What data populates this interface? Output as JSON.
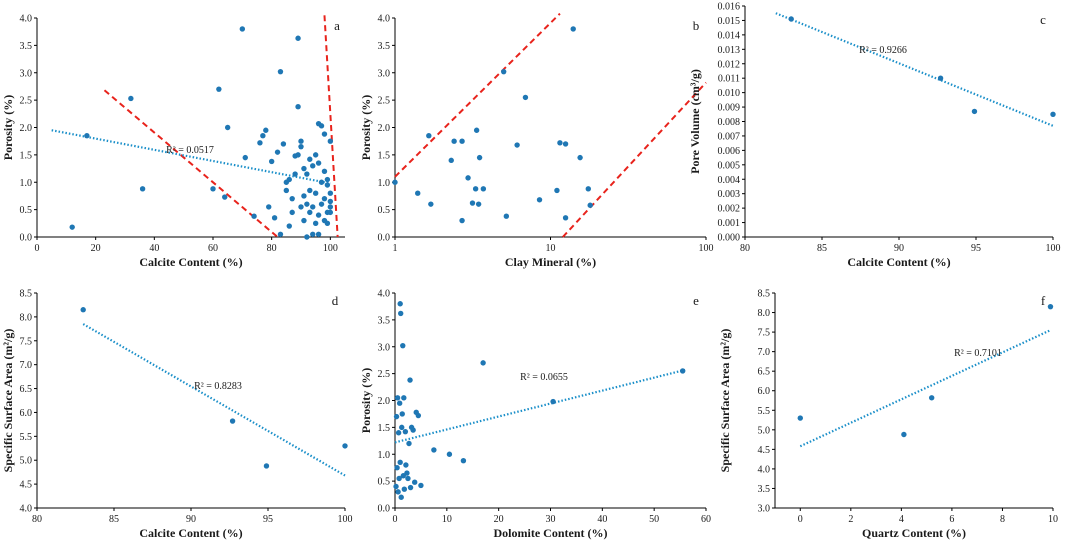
{
  "chart_data": [
    {
      "id": "a",
      "type": "scatter",
      "letter": "a",
      "xlabel": "Calcite Content (%)",
      "ylabel": "Porosity (%)",
      "xlim": [
        0,
        105
      ],
      "ylim": [
        0,
        4.0
      ],
      "xticks": [
        0,
        20,
        40,
        60,
        80,
        100
      ],
      "yticks": [
        0,
        0.5,
        1.0,
        1.5,
        2.0,
        2.5,
        3.0,
        3.5,
        4.0
      ],
      "xtick_labels": [
        "0",
        "20",
        "40",
        "60",
        "80",
        "100"
      ],
      "ytick_labels": [
        "0.0",
        "0.5",
        "1.0",
        "1.5",
        "2.0",
        "2.5",
        "3.0",
        "3.5",
        "4.0"
      ],
      "r2": "R² = 0.0517",
      "trend": [
        [
          5,
          1.95
        ],
        [
          100,
          0.98
        ]
      ],
      "bounds": [
        [
          [
            23,
            2.68
          ],
          [
            82,
            0.0
          ]
        ],
        [
          [
            98,
            4.05
          ],
          [
            102.5,
            0.0
          ]
        ]
      ],
      "points": [
        [
          12,
          0.18
        ],
        [
          17,
          1.85
        ],
        [
          32,
          2.53
        ],
        [
          36,
          0.88
        ],
        [
          60,
          0.88
        ],
        [
          62,
          2.7
        ],
        [
          64,
          0.73
        ],
        [
          65,
          2.0
        ],
        [
          70,
          3.8
        ],
        [
          71,
          1.45
        ],
        [
          74,
          0.38
        ],
        [
          76,
          1.72
        ],
        [
          77,
          1.85
        ],
        [
          78,
          1.95
        ],
        [
          79,
          0.55
        ],
        [
          80,
          1.38
        ],
        [
          81,
          0.35
        ],
        [
          82,
          1.55
        ],
        [
          83,
          0.05
        ],
        [
          83,
          3.02
        ],
        [
          84,
          1.7
        ],
        [
          85,
          0.85
        ],
        [
          85,
          1.0
        ],
        [
          86,
          1.05
        ],
        [
          86,
          0.2
        ],
        [
          87,
          0.45
        ],
        [
          87,
          0.7
        ],
        [
          88,
          1.15
        ],
        [
          88,
          1.48
        ],
        [
          89,
          3.63
        ],
        [
          89,
          1.5
        ],
        [
          89,
          2.38
        ],
        [
          90,
          0.55
        ],
        [
          90,
          1.65
        ],
        [
          90,
          1.75
        ],
        [
          91,
          0.3
        ],
        [
          91,
          0.75
        ],
        [
          91,
          1.25
        ],
        [
          92,
          0.0
        ],
        [
          92,
          0.6
        ],
        [
          92,
          1.15
        ],
        [
          93,
          0.45
        ],
        [
          93,
          0.85
        ],
        [
          93,
          1.42
        ],
        [
          94,
          0.05
        ],
        [
          94,
          0.55
        ],
        [
          94,
          1.3
        ],
        [
          95,
          0.25
        ],
        [
          95,
          0.8
        ],
        [
          95,
          1.5
        ],
        [
          96,
          0.05
        ],
        [
          96,
          0.4
        ],
        [
          96,
          1.35
        ],
        [
          96,
          2.07
        ],
        [
          97,
          0.6
        ],
        [
          97,
          1.0
        ],
        [
          97,
          2.03
        ],
        [
          98,
          0.3
        ],
        [
          98,
          0.7
        ],
        [
          98,
          1.2
        ],
        [
          98,
          1.88
        ],
        [
          99,
          0.45
        ],
        [
          99,
          0.95
        ],
        [
          99,
          1.05
        ],
        [
          99,
          0.25
        ],
        [
          100,
          0.55
        ],
        [
          100,
          0.65
        ],
        [
          100,
          1.75
        ],
        [
          100,
          0.45
        ],
        [
          100,
          0.8
        ]
      ]
    },
    {
      "id": "b",
      "type": "scatter",
      "letter": "b",
      "xscale": "log",
      "xlabel": "Clay Mineral (%)",
      "ylabel": "Porosity (%)",
      "xlim": [
        1,
        100
      ],
      "ylim": [
        0,
        4.0
      ],
      "xticks": [
        1,
        10,
        100
      ],
      "yticks": [
        0,
        0.5,
        1.0,
        1.5,
        2.0,
        2.5,
        3.0,
        3.5,
        4.0
      ],
      "xtick_labels": [
        "1",
        "10",
        "100"
      ],
      "ytick_labels": [
        "0.0",
        "0.5",
        "1.0",
        "1.5",
        "2.0",
        "2.5",
        "3.0",
        "3.5",
        "4.0"
      ],
      "bounds": [
        [
          [
            1,
            1.1
          ],
          [
            11.5,
            4.08
          ]
        ],
        [
          [
            12,
            0.0
          ],
          [
            100,
            2.82
          ]
        ]
      ],
      "points": [
        [
          1.0,
          1.0
        ],
        [
          1.4,
          0.8
        ],
        [
          1.65,
          1.85
        ],
        [
          1.7,
          0.6
        ],
        [
          2.3,
          1.4
        ],
        [
          2.4,
          1.75
        ],
        [
          2.7,
          0.3
        ],
        [
          2.7,
          1.75
        ],
        [
          2.95,
          1.08
        ],
        [
          3.15,
          0.62
        ],
        [
          3.3,
          0.88
        ],
        [
          3.35,
          1.95
        ],
        [
          3.45,
          0.6
        ],
        [
          3.5,
          1.45
        ],
        [
          3.7,
          0.88
        ],
        [
          5.0,
          3.02
        ],
        [
          5.2,
          0.38
        ],
        [
          6.1,
          1.68
        ],
        [
          6.9,
          2.55
        ],
        [
          8.5,
          0.68
        ],
        [
          11.0,
          0.85
        ],
        [
          11.5,
          1.72
        ],
        [
          12.5,
          1.7
        ],
        [
          12.5,
          0.35
        ],
        [
          14.0,
          3.8
        ],
        [
          15.5,
          1.45
        ],
        [
          17.5,
          0.88
        ],
        [
          18.0,
          0.58
        ]
      ]
    },
    {
      "id": "c",
      "type": "scatter",
      "letter": "c",
      "xlabel": "Calcite Content (%)",
      "ylabel": "Pore Volume (cm³/g)",
      "xlim": [
        80,
        100
      ],
      "ylim": [
        0,
        0.016
      ],
      "xticks": [
        80,
        85,
        90,
        95,
        100
      ],
      "yticks": [
        0,
        0.001,
        0.002,
        0.003,
        0.004,
        0.005,
        0.006,
        0.007,
        0.008,
        0.009,
        0.01,
        0.011,
        0.012,
        0.013,
        0.014,
        0.015,
        0.016
      ],
      "xtick_labels": [
        "80",
        "85",
        "90",
        "95",
        "100"
      ],
      "ytick_labels": [
        "0.000",
        "0.001",
        "0.002",
        "0.003",
        "0.004",
        "0.005",
        "0.006",
        "0.007",
        "0.008",
        "0.009",
        "0.010",
        "0.011",
        "0.012",
        "0.013",
        "0.014",
        "0.015",
        "0.016"
      ],
      "r2": "R² = 0.9266",
      "trend": [
        [
          82,
          0.0155
        ],
        [
          100,
          0.0077
        ]
      ],
      "points": [
        [
          83,
          0.0151
        ],
        [
          92.7,
          0.011
        ],
        [
          94.9,
          0.0087
        ],
        [
          100,
          0.0085
        ]
      ]
    },
    {
      "id": "d",
      "type": "scatter",
      "letter": "d",
      "xlabel": "Calcite Content (%)",
      "ylabel": "Specific Surface Area (m²/g)",
      "xlim": [
        80,
        100
      ],
      "ylim": [
        4.0,
        8.5
      ],
      "xticks": [
        80,
        85,
        90,
        95,
        100
      ],
      "yticks": [
        4.0,
        4.5,
        5.0,
        5.5,
        6.0,
        6.5,
        7.0,
        7.5,
        8.0,
        8.5
      ],
      "xtick_labels": [
        "80",
        "85",
        "90",
        "95",
        "100"
      ],
      "ytick_labels": [
        "4.0",
        "4.5",
        "5.0",
        "5.5",
        "6.0",
        "6.5",
        "7.0",
        "7.5",
        "8.0",
        "8.5"
      ],
      "r2": "R² = 0.8283",
      "trend": [
        [
          83,
          7.85
        ],
        [
          100,
          4.68
        ]
      ],
      "points": [
        [
          83,
          8.15
        ],
        [
          92.7,
          5.82
        ],
        [
          94.9,
          4.88
        ],
        [
          100,
          5.3
        ]
      ]
    },
    {
      "id": "e",
      "type": "scatter",
      "letter": "e",
      "xlabel": "Dolomite Content (%)",
      "ylabel": "Porosity (%)",
      "xlim": [
        0,
        60
      ],
      "ylim": [
        0,
        4.0
      ],
      "xticks": [
        0,
        10,
        20,
        30,
        40,
        50,
        60
      ],
      "yticks": [
        0,
        0.5,
        1.0,
        1.5,
        2.0,
        2.5,
        3.0,
        3.5,
        4.0
      ],
      "xtick_labels": [
        "0",
        "10",
        "20",
        "30",
        "40",
        "50",
        "60"
      ],
      "ytick_labels": [
        "0.0",
        "0.5",
        "1.0",
        "1.5",
        "2.0",
        "2.5",
        "3.0",
        "3.5",
        "4.0"
      ],
      "r2": "R² = 0.0655",
      "trend": [
        [
          0,
          1.22
        ],
        [
          56,
          2.57
        ]
      ],
      "points": [
        [
          0.2,
          0.4
        ],
        [
          0.3,
          1.7
        ],
        [
          0.4,
          0.75
        ],
        [
          0.5,
          2.05
        ],
        [
          0.6,
          0.3
        ],
        [
          0.7,
          1.4
        ],
        [
          0.8,
          0.55
        ],
        [
          0.9,
          1.95
        ],
        [
          1.0,
          3.8
        ],
        [
          1.0,
          0.85
        ],
        [
          1.1,
          3.62
        ],
        [
          1.2,
          0.2
        ],
        [
          1.3,
          1.5
        ],
        [
          1.4,
          1.75
        ],
        [
          1.5,
          3.02
        ],
        [
          1.6,
          0.6
        ],
        [
          1.7,
          2.05
        ],
        [
          1.8,
          0.35
        ],
        [
          2.0,
          1.42
        ],
        [
          2.1,
          0.8
        ],
        [
          2.3,
          0.65
        ],
        [
          2.5,
          0.55
        ],
        [
          2.7,
          1.2
        ],
        [
          2.9,
          2.38
        ],
        [
          3.0,
          0.38
        ],
        [
          3.2,
          1.5
        ],
        [
          3.5,
          1.45
        ],
        [
          3.8,
          0.48
        ],
        [
          4.1,
          1.78
        ],
        [
          4.5,
          1.72
        ],
        [
          5.0,
          0.42
        ],
        [
          7.5,
          1.08
        ],
        [
          10.5,
          1.0
        ],
        [
          13.2,
          0.88
        ],
        [
          17.0,
          2.7
        ],
        [
          30.5,
          1.98
        ],
        [
          55.5,
          2.55
        ]
      ]
    },
    {
      "id": "f",
      "type": "scatter",
      "letter": "f",
      "xlabel": "Quartz Content (%)",
      "ylabel": "Specific Surface Area (m²/g)",
      "xlim": [
        -1,
        10
      ],
      "ylim": [
        3.0,
        8.5
      ],
      "xticks": [
        0,
        2,
        4,
        6,
        8,
        10
      ],
      "yticks": [
        3.0,
        3.5,
        4.0,
        4.5,
        5.0,
        5.5,
        6.0,
        6.5,
        7.0,
        7.5,
        8.0,
        8.5
      ],
      "xtick_labels": [
        "0",
        "2",
        "4",
        "6",
        "8",
        "10"
      ],
      "ytick_labels": [
        "3.0",
        "3.5",
        "4.0",
        "4.5",
        "5.0",
        "5.5",
        "6.0",
        "6.5",
        "7.0",
        "7.5",
        "8.0",
        "8.5"
      ],
      "r2": "R² = 0.7101",
      "trend": [
        [
          0,
          4.58
        ],
        [
          9.9,
          7.55
        ]
      ],
      "points": [
        [
          0,
          5.3
        ],
        [
          4.1,
          4.88
        ],
        [
          5.2,
          5.82
        ],
        [
          9.9,
          8.15
        ]
      ]
    }
  ]
}
